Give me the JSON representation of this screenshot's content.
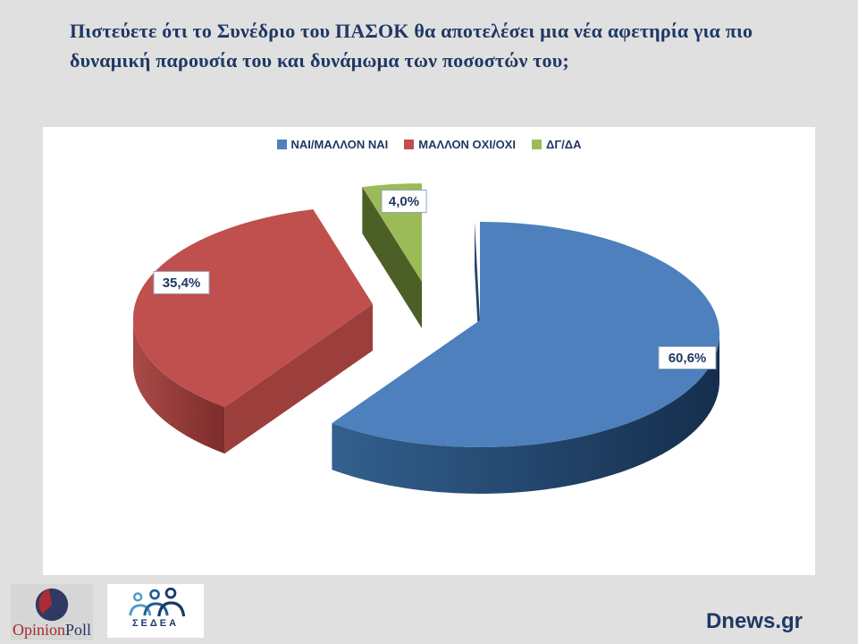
{
  "page": {
    "background": "#E0E0E0",
    "panel_color": "#FFFFFF",
    "text_navy": "#1F3864"
  },
  "title": {
    "line1": "Πιστεύετε ότι το Συνέδριο του ΠΑΣΟΚ θα αποτελέσει μια νέα αφετηρία για πιο",
    "line2": "δυναμική παρουσία του και δυνάμωμα των ποσοστών του;"
  },
  "chart_data": {
    "type": "pie",
    "style": "3d-exploded-pie",
    "title": "Πιστεύετε ότι το Συνέδριο του ΠΑΣΟΚ θα αποτελέσει μια νέα αφετηρία για πιο δυναμική παρουσία του και δυνάμωμα των ποσοστών του;",
    "legend_position": "top",
    "total": 100,
    "slices": [
      {
        "label": "ΝΑΙ/ΜΑΛΛΟΝ ΝΑΙ",
        "value": 60.6,
        "display": "60,6%",
        "color": "#4D80BC"
      },
      {
        "label": "ΜΑΛΛΟΝ ΟΧΙ/ΟΧΙ",
        "value": 35.4,
        "display": "35,4%",
        "color": "#C0504D"
      },
      {
        "label": "ΔΓ/ΔΑ",
        "value": 4.0,
        "display": "4,0%",
        "color": "#9BBB59"
      }
    ],
    "label_text_color": "#1F3864"
  },
  "footer": {
    "opinionpoll": {
      "part1": "Opinion",
      "part2": "Poll"
    },
    "sedea_label": "ΣΕΔΕΑ",
    "site": "Dnews.gr"
  }
}
